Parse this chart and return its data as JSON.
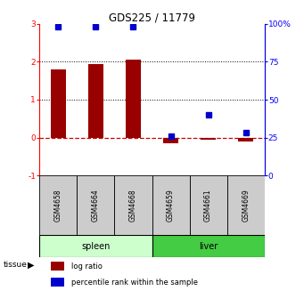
{
  "title": "GDS225 / 11779",
  "samples": [
    "GSM4658",
    "GSM4664",
    "GSM4668",
    "GSM4659",
    "GSM4661",
    "GSM4669"
  ],
  "groups": [
    "spleen",
    "spleen",
    "spleen",
    "liver",
    "liver",
    "liver"
  ],
  "log_ratio": [
    1.8,
    1.95,
    2.06,
    -0.15,
    -0.05,
    -0.1
  ],
  "percentile": [
    98,
    98,
    98,
    26,
    40,
    28
  ],
  "ylim_left": [
    -1,
    3
  ],
  "ylim_right": [
    0,
    100
  ],
  "yticks_left": [
    -1,
    0,
    1,
    2,
    3
  ],
  "yticks_right": [
    0,
    25,
    50,
    75,
    100
  ],
  "bar_color": "#990000",
  "dot_color": "#0000cc",
  "dashed_color": "#cc0000",
  "spleen_color": "#ccffcc",
  "liver_color": "#44cc44",
  "label_bg_color": "#cccccc",
  "tissue_label": "tissue",
  "legend_logratio": "log ratio",
  "legend_percentile": "percentile rank within the sample",
  "bar_width": 0.4
}
